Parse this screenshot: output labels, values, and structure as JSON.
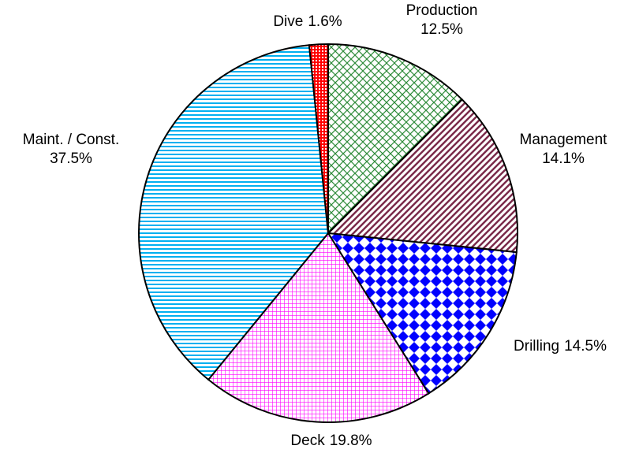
{
  "chart_data": {
    "type": "pie",
    "categories": [
      "Production",
      "Management",
      "Drilling",
      "Deck",
      "Maint. / Const.",
      "Dive"
    ],
    "values": [
      12.5,
      14.1,
      14.5,
      19.8,
      37.5,
      1.6
    ],
    "value_labels": [
      "12.5%",
      "14.1%",
      "14.5%",
      "19.8%",
      "37.5%",
      "1.6%"
    ],
    "colors": [
      "#2e8b3a",
      "#7a2a4a",
      "#0000ff",
      "#ff00ff",
      "#00b0f0",
      "#ff0000"
    ]
  }
}
